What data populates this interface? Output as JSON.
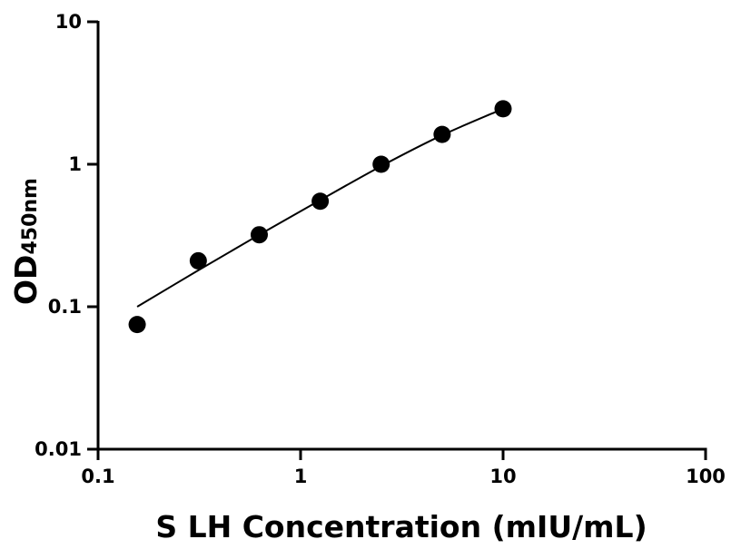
{
  "chart_data": {
    "type": "scatter",
    "title": "",
    "xlabel": "S LH Concentration (mIU/mL)",
    "ylabel": "OD",
    "ylabel_subscript": "450nm",
    "x_scale": "log",
    "y_scale": "log",
    "xlim": [
      0.1,
      100
    ],
    "ylim": [
      0.01,
      10
    ],
    "x_ticks": [
      "0.1",
      "1",
      "10",
      "100"
    ],
    "y_ticks": [
      "0.01",
      "0.1",
      "1",
      "10"
    ],
    "grid": false,
    "legend": "none",
    "points": {
      "x": [
        0.156,
        0.3125,
        0.625,
        1.25,
        2.5,
        5,
        10
      ],
      "y": [
        0.075,
        0.21,
        0.32,
        0.55,
        1.0,
        1.62,
        2.45
      ]
    },
    "fit_curve": {
      "x": [
        0.156,
        0.3125,
        0.625,
        1.25,
        2.5,
        5,
        10
      ],
      "y": [
        0.1,
        0.18,
        0.32,
        0.56,
        0.97,
        1.6,
        2.45
      ]
    },
    "colors": {
      "points": "#000000",
      "line": "#000000",
      "axes": "#000000"
    }
  }
}
